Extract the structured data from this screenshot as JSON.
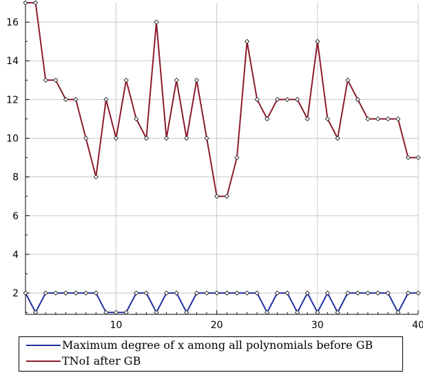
{
  "chart_data": {
    "type": "line",
    "title": "",
    "xlabel": "",
    "ylabel": "",
    "xlim": [
      1,
      40
    ],
    "ylim": [
      0.9,
      17
    ],
    "x_ticks": [
      10,
      20,
      30,
      40
    ],
    "y_ticks": [
      2,
      4,
      6,
      8,
      10,
      12,
      14,
      16
    ],
    "grid": true,
    "legend_position": "bottom",
    "x": [
      1,
      2,
      3,
      4,
      5,
      6,
      7,
      8,
      9,
      10,
      11,
      12,
      13,
      14,
      15,
      16,
      17,
      18,
      19,
      20,
      21,
      22,
      23,
      24,
      25,
      26,
      27,
      28,
      29,
      30,
      31,
      32,
      33,
      34,
      35,
      36,
      37,
      38,
      39,
      40
    ],
    "series": [
      {
        "name": "Maximum degree of x among all polynomials before GB",
        "color": "#1f2fa0",
        "values": [
          2,
          1,
          2,
          2,
          2,
          2,
          2,
          2,
          1,
          1,
          1,
          2,
          2,
          1,
          2,
          2,
          1,
          2,
          2,
          2,
          2,
          2,
          2,
          2,
          1,
          2,
          2,
          1,
          2,
          1,
          2,
          1,
          2,
          2,
          2,
          2,
          2,
          1,
          2,
          2
        ]
      },
      {
        "name": "TNoI after GB",
        "color": "#8b1a2b",
        "values": [
          17,
          17,
          13,
          13,
          12,
          12,
          10,
          8,
          12,
          10,
          13,
          11,
          10,
          16,
          10,
          13,
          10,
          13,
          10,
          7,
          7,
          9,
          15,
          12,
          11,
          12,
          12,
          12,
          11,
          15,
          11,
          10,
          13,
          12,
          11,
          11,
          11,
          11,
          9,
          9
        ]
      }
    ]
  }
}
